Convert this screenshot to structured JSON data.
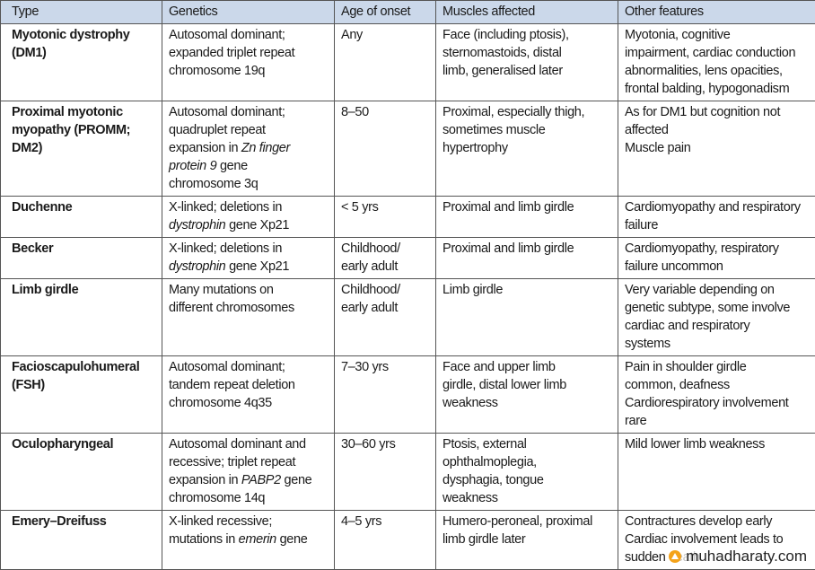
{
  "table": {
    "header": [
      "Type",
      "Genetics",
      "Age of onset",
      "Muscles affected",
      "Other features"
    ],
    "rows": [
      [
        [
          "Myotonic dystrophy",
          "(DM1)"
        ],
        [
          "Autosomal dominant;",
          "expanded triplet repeat",
          "chromosome 19q"
        ],
        [
          "Any"
        ],
        [
          "Face (including ptosis),",
          "sternomastoids, distal",
          "limb, generalised later"
        ],
        [
          "Myotonia, cognitive",
          "impairment, cardiac conduction",
          "abnormalities, lens opacities,",
          "frontal balding, hypogonadism"
        ]
      ],
      [
        [
          "Proximal myotonic",
          "myopathy (PROMM;",
          "DM2)"
        ],
        [
          "Autosomal dominant;",
          "quadruplet repeat",
          [
            {
              "text": "expansion in "
            },
            {
              "text": "Zn finger",
              "italic": true
            }
          ],
          [
            {
              "text": "protein 9",
              "italic": true
            },
            {
              "text": " gene"
            }
          ],
          "chromosome 3q"
        ],
        [
          "8–50"
        ],
        [
          "Proximal, especially thigh,",
          "sometimes muscle",
          "hypertrophy"
        ],
        [
          "As for DM1 but cognition not",
          "affected",
          "Muscle pain"
        ]
      ],
      [
        [
          "Duchenne"
        ],
        [
          "X-linked; deletions in",
          [
            {
              "text": "dystrophin",
              "italic": true
            },
            {
              "text": " gene Xp21"
            }
          ]
        ],
        [
          "< 5 yrs"
        ],
        [
          "Proximal and limb girdle"
        ],
        [
          "Cardiomyopathy and respiratory",
          "failure"
        ]
      ],
      [
        [
          "Becker"
        ],
        [
          "X-linked; deletions in",
          [
            {
              "text": "dystrophin",
              "italic": true
            },
            {
              "text": " gene Xp21"
            }
          ]
        ],
        [
          "Childhood/",
          "early adult"
        ],
        [
          "Proximal and limb girdle"
        ],
        [
          "Cardiomyopathy, respiratory",
          "failure uncommon"
        ]
      ],
      [
        [
          "Limb girdle"
        ],
        [
          "Many mutations on",
          "different chromosomes"
        ],
        [
          "Childhood/",
          "early adult"
        ],
        [
          "Limb girdle"
        ],
        [
          "Very variable depending on",
          "genetic subtype, some involve",
          "cardiac and respiratory",
          "systems"
        ]
      ],
      [
        [
          "Facioscapulohumeral",
          "(FSH)"
        ],
        [
          "Autosomal dominant;",
          "tandem repeat deletion",
          "chromosome 4q35"
        ],
        [
          "7–30 yrs"
        ],
        [
          "Face and upper limb",
          "girdle, distal lower limb",
          "weakness"
        ],
        [
          "Pain in shoulder girdle",
          "common, deafness",
          "Cardiorespiratory involvement",
          "rare"
        ]
      ],
      [
        [
          "Oculopharyngeal"
        ],
        [
          "Autosomal dominant and",
          "recessive; triplet repeat",
          [
            {
              "text": "expansion in "
            },
            {
              "text": "PABP2",
              "italic": true
            },
            {
              "text": " gene"
            }
          ],
          "chromosome 14q"
        ],
        [
          "30–60 yrs"
        ],
        [
          "Ptosis, external",
          "ophthalmoplegia,",
          "dysphagia, tongue",
          "weakness"
        ],
        [
          "Mild lower limb weakness"
        ]
      ],
      [
        [
          "Emery–Dreifuss"
        ],
        [
          "X-linked recessive;",
          [
            {
              "text": "mutations in "
            },
            {
              "text": "emerin",
              "italic": true
            },
            {
              "text": " gene"
            }
          ]
        ],
        [
          "4–5 yrs"
        ],
        [
          "Humero-peroneal, proximal",
          "limb girdle later"
        ],
        [
          "Contractures develop early",
          "Cardiac involvement leads to",
          "sudden death"
        ]
      ]
    ]
  },
  "watermark": "muhadharaty.com"
}
